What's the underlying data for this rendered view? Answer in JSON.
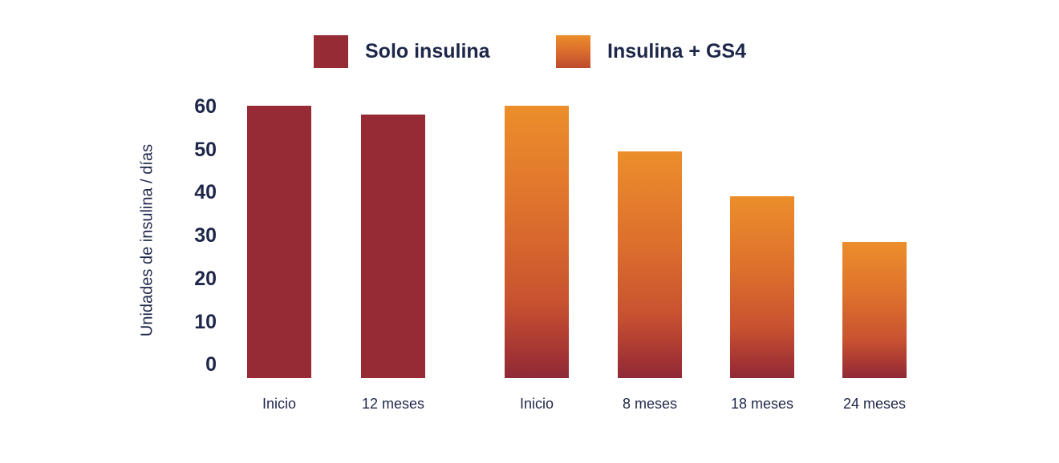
{
  "colors": {
    "navy_text": "#1E2749",
    "series_red": "#962B35",
    "series_orange_top": "#EC8E2B",
    "series_orange_bottom": "#8F2A37",
    "background": "#FFFFFF"
  },
  "chart_data": {
    "type": "bar",
    "title": "",
    "xlabel": "",
    "ylabel": "Unidades de insulina / días",
    "ylim": [
      0,
      60
    ],
    "yticks": [
      60,
      50,
      40,
      30,
      20,
      10,
      0
    ],
    "grid": false,
    "axis_lines": false,
    "legend": {
      "position": "top",
      "entries": [
        {
          "label": "Solo insulina",
          "style": "solid-red"
        },
        {
          "label": "Insulina + GS4",
          "style": "orange-gradient"
        }
      ]
    },
    "series": [
      {
        "name": "Solo insulina",
        "categories": [
          "Inicio",
          "12 meses"
        ],
        "values": [
          60,
          58
        ]
      },
      {
        "name": "Insulina + GS4",
        "categories": [
          "Inicio",
          "8 meses",
          "18 meses",
          "24 meses"
        ],
        "values": [
          60,
          50,
          40,
          30
        ]
      }
    ]
  }
}
